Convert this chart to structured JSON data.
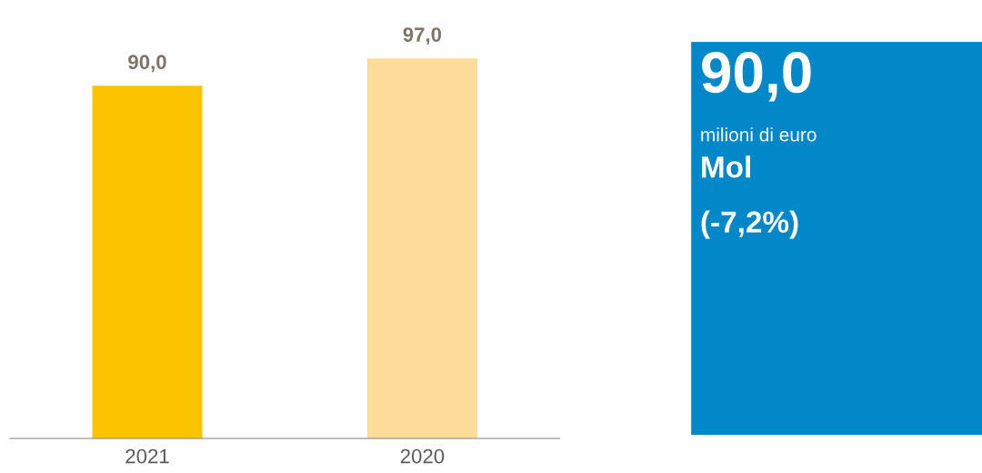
{
  "chart_data": [
    {
      "type": "bar",
      "categories": [
        "2021",
        "2020"
      ],
      "values": [
        90.0,
        97.0
      ],
      "colors": [
        "#fcc400",
        "#fddc9a"
      ],
      "value_labels": [
        "90,0",
        "97,0"
      ],
      "tick_labels": "x",
      "grid": false,
      "legend": false
    },
    {
      "type": "other",
      "color": "#0288c9",
      "annotations": [
        "90,0",
        "milioni di euro",
        "Mol",
        "(-7,2%)"
      ]
    }
  ]
}
